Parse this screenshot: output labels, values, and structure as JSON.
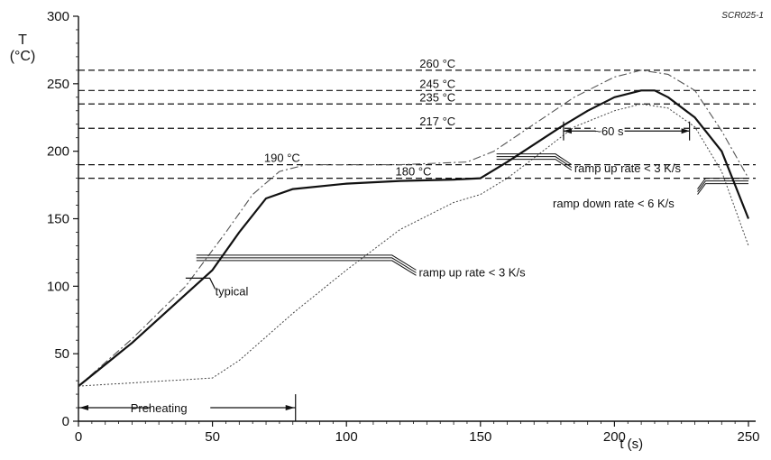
{
  "figure_code": "SCR025-1",
  "chart_data": {
    "type": "line",
    "title": "",
    "xlabel": "t (s)",
    "ylabel": {
      "symbol": "T",
      "unit": "(°C)"
    },
    "xlim": [
      0,
      250
    ],
    "ylim": [
      0,
      300
    ],
    "xticks": [
      0,
      50,
      100,
      150,
      200,
      250
    ],
    "yticks": [
      0,
      50,
      100,
      150,
      200,
      250,
      300
    ],
    "grid": false,
    "reference_lines": [
      {
        "label": "260 °C",
        "y": 260
      },
      {
        "label": "245 °C",
        "y": 245
      },
      {
        "label": "235 °C",
        "y": 235
      },
      {
        "label": "217 °C",
        "y": 217
      },
      {
        "label": "190 °C",
        "y": 190
      },
      {
        "label": "180 °C",
        "y": 180
      }
    ],
    "series": [
      {
        "name": "",
        "style": "dash-dot",
        "x": [
          0,
          20,
          40,
          55,
          65,
          75,
          85,
          100,
          120,
          145,
          155,
          170,
          185,
          200,
          210,
          220,
          230,
          240,
          250
        ],
        "y": [
          26,
          61,
          100,
          140,
          168,
          185,
          190,
          190,
          190,
          192,
          200,
          220,
          240,
          255,
          260,
          257,
          245,
          215,
          180
        ]
      },
      {
        "name": "typical",
        "style": "solid",
        "x": [
          0,
          20,
          40,
          50,
          60,
          70,
          80,
          100,
          120,
          140,
          150,
          160,
          170,
          180,
          190,
          200,
          210,
          215,
          220,
          230,
          240,
          250
        ],
        "y": [
          26,
          58,
          94,
          112,
          140,
          165,
          172,
          176,
          178,
          179,
          180,
          192,
          205,
          218,
          230,
          240,
          245,
          245,
          240,
          225,
          200,
          150
        ]
      },
      {
        "name": "",
        "style": "dotted",
        "x": [
          0,
          25,
          50,
          60,
          80,
          100,
          120,
          140,
          150,
          160,
          170,
          185,
          200,
          210,
          220,
          230,
          240,
          250
        ],
        "y": [
          26,
          29,
          32,
          45,
          80,
          112,
          142,
          162,
          168,
          180,
          195,
          218,
          230,
          235,
          232,
          218,
          185,
          130
        ]
      }
    ],
    "annotations": [
      {
        "text": "typical",
        "x": 51,
        "y": 96
      },
      {
        "text": "ramp up rate < 3 K/s",
        "x": 127,
        "y": 110
      },
      {
        "text": "ramp up rate < 3 K/s",
        "x": 185,
        "y": 187
      },
      {
        "text": "ramp down rate < 6 K/s",
        "x": 177,
        "y": 161
      },
      {
        "text": "~60 s",
        "x": 198,
        "y": 215
      },
      {
        "text": "Preheating",
        "x": 30,
        "y": 10
      }
    ]
  }
}
